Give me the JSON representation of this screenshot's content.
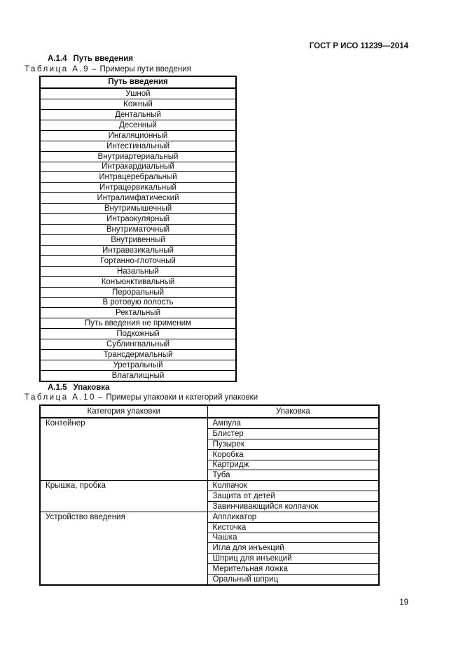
{
  "page": {
    "header": "ГОСТ Р ИСО 11239—2014",
    "page_number": "19"
  },
  "section1": {
    "heading_number": "А.1.4",
    "heading_title": "Путь введения",
    "caption_label": "Таблица А.9",
    "caption_dash": "–",
    "caption_text": "Примеры пути введения"
  },
  "table1": {
    "header": "Путь введения",
    "rows": [
      "Ушной",
      "Кожный",
      "Дентальный",
      "Десенный",
      "Ингаляционный",
      "Интестинальный",
      "Внутриартериальный",
      "Интракардиальный",
      "Интрацеребральный",
      "Интрацервикальный",
      "Интралимфатический",
      "Внутримышечный",
      "Интраокулярный",
      "Внутриматочный",
      "Внутривенный",
      "Интравезикальный",
      "Гортанно-глоточный",
      "Назальный",
      "Конъюнктивальный",
      "Пероральный",
      "В ротовую полость",
      "Ректальный",
      "Путь введения не применим",
      "Подкожный",
      "Сублингвальный",
      "Трансдермальный",
      "Уретральный",
      "Влагалищный"
    ]
  },
  "section2": {
    "heading_number": "А.1.5",
    "heading_title": "Упаковка",
    "caption_label": "Таблица А.10",
    "caption_dash": "–",
    "caption_text": "Примеры упаковки и категорий упаковки"
  },
  "table2": {
    "col1_header": "Категория упаковки",
    "col2_header": "Упаковка",
    "groups": [
      {
        "category": "Контейнер",
        "items": [
          "Ампула",
          "Блистер",
          "Пузырек",
          "Коробка",
          "Картридж",
          "Туба"
        ]
      },
      {
        "category": "Крышка, пробка",
        "items": [
          "Колпачок",
          "Защита от детей",
          "Завинчивающийся колпачок"
        ]
      },
      {
        "category": "Устройство введения",
        "items": [
          "Аппликатор",
          "Кисточка",
          "Чашка",
          "Игла для инъекций",
          "Шприц для инъекций",
          "Мерительная ложка",
          "Оральный шприц"
        ]
      }
    ]
  }
}
